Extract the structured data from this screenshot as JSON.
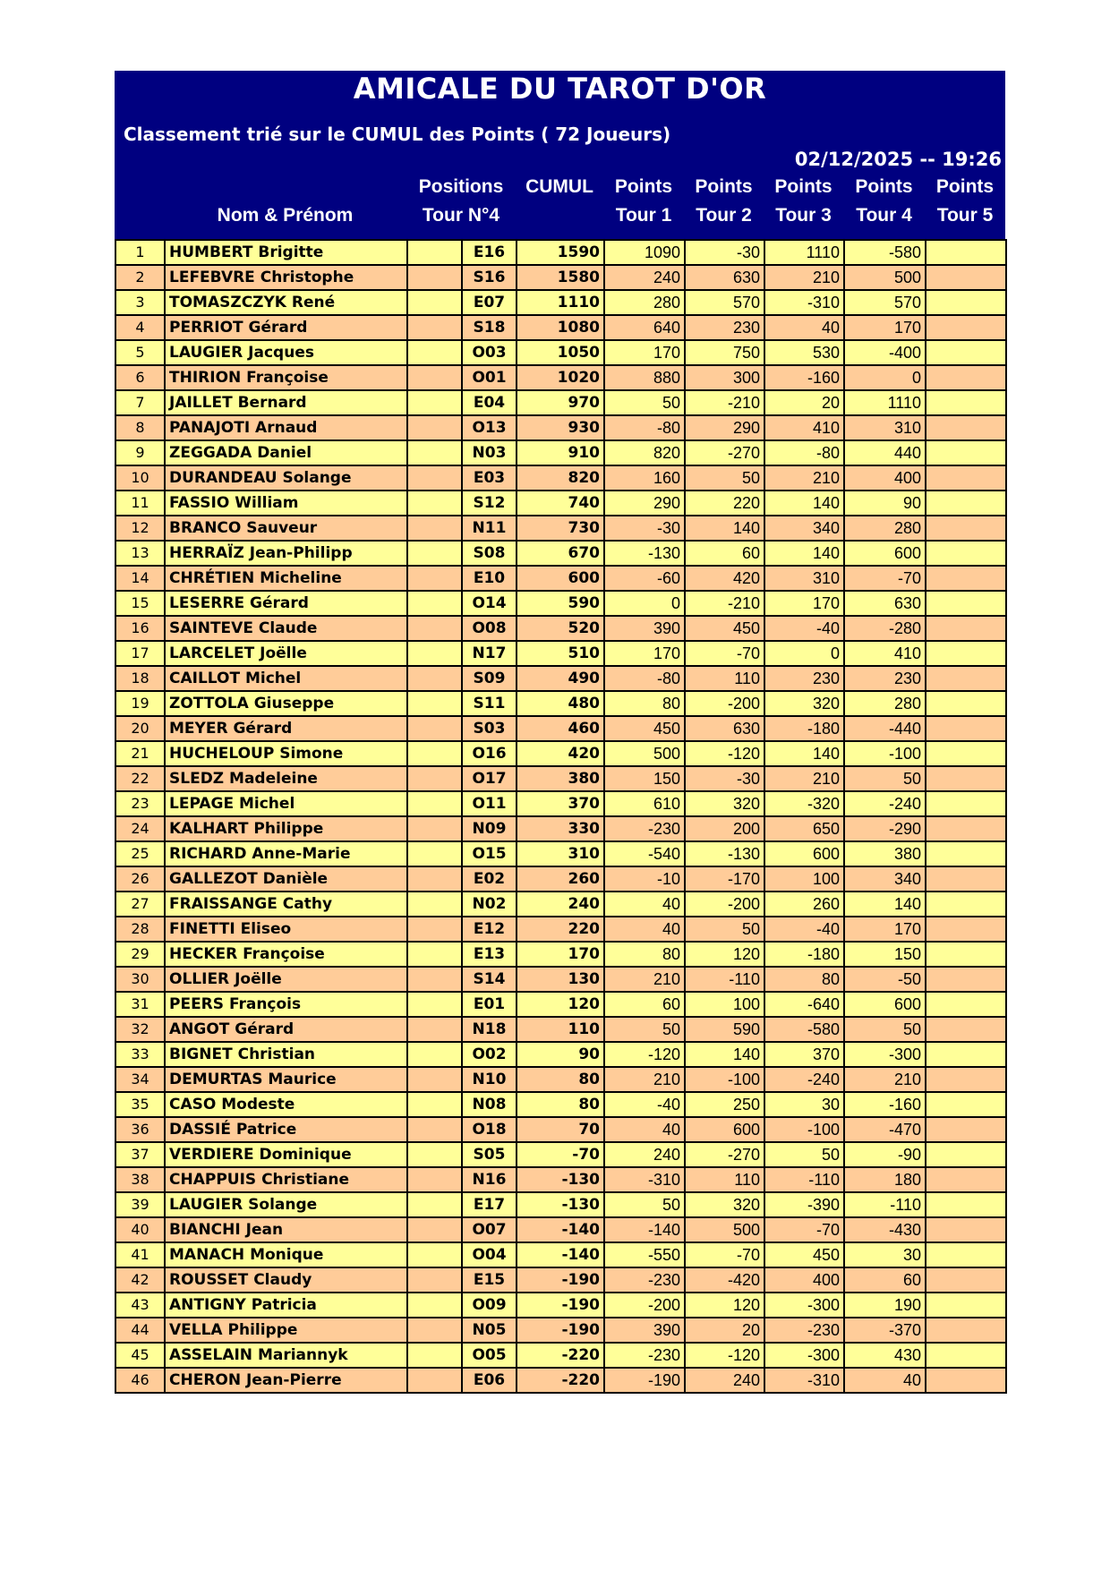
{
  "header": {
    "title": "AMICALE DU TAROT D'OR",
    "subtitle": "Classement trié sur le CUMUL des Points ( 72 Joueurs)",
    "datetime": "02/12/2025 -- 19:26",
    "columns": {
      "name": "Nom & Prénom",
      "positions_1": "Positions",
      "positions_2": "Tour N°4",
      "cumul": "CUMUL",
      "t1_1": "Points",
      "t1_2": "Tour 1",
      "t2_1": "Points",
      "t2_2": "Tour 2",
      "t3_1": "Points",
      "t3_2": "Tour 3",
      "t4_1": "Points",
      "t4_2": "Tour 4",
      "t5_1": "Points",
      "t5_2": "Tour 5"
    }
  },
  "colors": {
    "header_bg": "#000080",
    "row_odd": "#FFFF99",
    "row_even": "#FFCC99"
  },
  "rows": [
    [
      "1",
      "HUMBERT Brigitte",
      "",
      "E16",
      "1590",
      "1090",
      "-30",
      "1110",
      "-580",
      ""
    ],
    [
      "2",
      "LEFEBVRE Christophe",
      "",
      "S16",
      "1580",
      "240",
      "630",
      "210",
      "500",
      ""
    ],
    [
      "3",
      "TOMASZCZYK René",
      "",
      "E07",
      "1110",
      "280",
      "570",
      "-310",
      "570",
      ""
    ],
    [
      "4",
      "PERRIOT Gérard",
      "",
      "S18",
      "1080",
      "640",
      "230",
      "40",
      "170",
      ""
    ],
    [
      "5",
      "LAUGIER Jacques",
      "",
      "O03",
      "1050",
      "170",
      "750",
      "530",
      "-400",
      ""
    ],
    [
      "6",
      "THIRION Françoise",
      "",
      "O01",
      "1020",
      "880",
      "300",
      "-160",
      "0",
      ""
    ],
    [
      "7",
      "JAILLET Bernard",
      "",
      "E04",
      "970",
      "50",
      "-210",
      "20",
      "1110",
      ""
    ],
    [
      "8",
      "PANAJOTI Arnaud",
      "",
      "O13",
      "930",
      "-80",
      "290",
      "410",
      "310",
      ""
    ],
    [
      "9",
      "ZEGGADA Daniel",
      "",
      "N03",
      "910",
      "820",
      "-270",
      "-80",
      "440",
      ""
    ],
    [
      "10",
      "DURANDEAU Solange",
      "",
      "E03",
      "820",
      "160",
      "50",
      "210",
      "400",
      ""
    ],
    [
      "11",
      "FASSIO William",
      "",
      "S12",
      "740",
      "290",
      "220",
      "140",
      "90",
      ""
    ],
    [
      "12",
      "BRANCO Sauveur",
      "",
      "N11",
      "730",
      "-30",
      "140",
      "340",
      "280",
      ""
    ],
    [
      "13",
      "HERRAÏZ Jean-Philipp",
      "",
      "S08",
      "670",
      "-130",
      "60",
      "140",
      "600",
      ""
    ],
    [
      "14",
      "CHRÉTIEN Micheline",
      "",
      "E10",
      "600",
      "-60",
      "420",
      "310",
      "-70",
      ""
    ],
    [
      "15",
      "LESERRE Gérard",
      "",
      "O14",
      "590",
      "0",
      "-210",
      "170",
      "630",
      ""
    ],
    [
      "16",
      "SAINTEVE Claude",
      "",
      "O08",
      "520",
      "390",
      "450",
      "-40",
      "-280",
      ""
    ],
    [
      "17",
      "LARCELET Joëlle",
      "",
      "N17",
      "510",
      "170",
      "-70",
      "0",
      "410",
      ""
    ],
    [
      "18",
      "CAILLOT Michel",
      "",
      "S09",
      "490",
      "-80",
      "110",
      "230",
      "230",
      ""
    ],
    [
      "19",
      "ZOTTOLA Giuseppe",
      "",
      "S11",
      "480",
      "80",
      "-200",
      "320",
      "280",
      ""
    ],
    [
      "20",
      "MEYER Gérard",
      "",
      "S03",
      "460",
      "450",
      "630",
      "-180",
      "-440",
      ""
    ],
    [
      "21",
      "HUCHELOUP Simone",
      "",
      "O16",
      "420",
      "500",
      "-120",
      "140",
      "-100",
      ""
    ],
    [
      "22",
      "SLEDZ Madeleine",
      "",
      "O17",
      "380",
      "150",
      "-30",
      "210",
      "50",
      ""
    ],
    [
      "23",
      "LEPAGE Michel",
      "",
      "O11",
      "370",
      "610",
      "320",
      "-320",
      "-240",
      ""
    ],
    [
      "24",
      "KALHART Philippe",
      "",
      "N09",
      "330",
      "-230",
      "200",
      "650",
      "-290",
      ""
    ],
    [
      "25",
      "RICHARD Anne-Marie",
      "",
      "O15",
      "310",
      "-540",
      "-130",
      "600",
      "380",
      ""
    ],
    [
      "26",
      "GALLEZOT Danièle",
      "",
      "E02",
      "260",
      "-10",
      "-170",
      "100",
      "340",
      ""
    ],
    [
      "27",
      "FRAISSANGE Cathy",
      "",
      "N02",
      "240",
      "40",
      "-200",
      "260",
      "140",
      ""
    ],
    [
      "28",
      "FINETTI Eliseo",
      "",
      "E12",
      "220",
      "40",
      "50",
      "-40",
      "170",
      ""
    ],
    [
      "29",
      "HECKER Françoise",
      "",
      "E13",
      "170",
      "80",
      "120",
      "-180",
      "150",
      ""
    ],
    [
      "30",
      "OLLIER Joëlle",
      "",
      "S14",
      "130",
      "210",
      "-110",
      "80",
      "-50",
      ""
    ],
    [
      "31",
      "PEERS François",
      "",
      "E01",
      "120",
      "60",
      "100",
      "-640",
      "600",
      ""
    ],
    [
      "32",
      "ANGOT Gérard",
      "",
      "N18",
      "110",
      "50",
      "590",
      "-580",
      "50",
      ""
    ],
    [
      "33",
      "BIGNET Christian",
      "",
      "O02",
      "90",
      "-120",
      "140",
      "370",
      "-300",
      ""
    ],
    [
      "34",
      "DEMURTAS Maurice",
      "",
      "N10",
      "80",
      "210",
      "-100",
      "-240",
      "210",
      ""
    ],
    [
      "35",
      "CASO Modeste",
      "",
      "N08",
      "80",
      "-40",
      "250",
      "30",
      "-160",
      ""
    ],
    [
      "36",
      "DASSIÉ Patrice",
      "",
      "O18",
      "70",
      "40",
      "600",
      "-100",
      "-470",
      ""
    ],
    [
      "37",
      "VERDIERE Dominique",
      "",
      "S05",
      "-70",
      "240",
      "-270",
      "50",
      "-90",
      ""
    ],
    [
      "38",
      "CHAPPUIS Christiane",
      "",
      "N16",
      "-130",
      "-310",
      "110",
      "-110",
      "180",
      ""
    ],
    [
      "39",
      "LAUGIER Solange",
      "",
      "E17",
      "-130",
      "50",
      "320",
      "-390",
      "-110",
      ""
    ],
    [
      "40",
      "BIANCHI Jean",
      "",
      "O07",
      "-140",
      "-140",
      "500",
      "-70",
      "-430",
      ""
    ],
    [
      "41",
      "MANACH Monique",
      "",
      "O04",
      "-140",
      "-550",
      "-70",
      "450",
      "30",
      ""
    ],
    [
      "42",
      "ROUSSET Claudy",
      "",
      "E15",
      "-190",
      "-230",
      "-420",
      "400",
      "60",
      ""
    ],
    [
      "43",
      "ANTIGNY Patricia",
      "",
      "O09",
      "-190",
      "-200",
      "120",
      "-300",
      "190",
      ""
    ],
    [
      "44",
      "VELLA Philippe",
      "",
      "N05",
      "-190",
      "390",
      "20",
      "-230",
      "-370",
      ""
    ],
    [
      "45",
      "ASSELAIN Mariannyk",
      "",
      "O05",
      "-220",
      "-230",
      "-120",
      "-300",
      "430",
      ""
    ],
    [
      "46",
      "CHERON Jean-Pierre",
      "",
      "E06",
      "-220",
      "-190",
      "240",
      "-310",
      "40",
      ""
    ]
  ]
}
